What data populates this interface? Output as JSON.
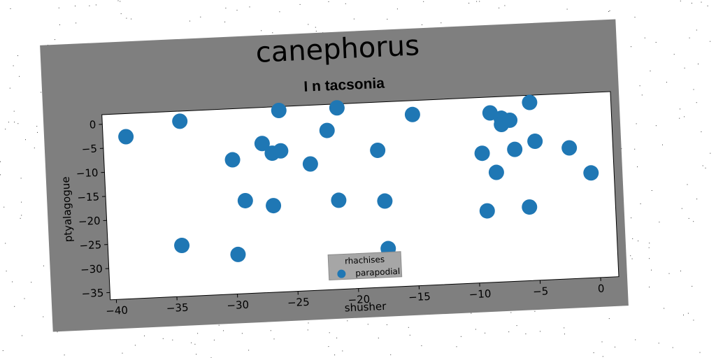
{
  "chart_data": {
    "type": "scatter",
    "suptitle": "canephorus",
    "title": "I n tacsonia",
    "xlabel": "shusher",
    "ylabel": "ptyalagogue",
    "xlim": [
      -40.5,
      1.5
    ],
    "ylim": [
      -36.5,
      2
    ],
    "xticks": [
      -40,
      -35,
      -30,
      -25,
      -20,
      -15,
      -10,
      -5,
      0
    ],
    "yticks": [
      0,
      -5,
      -10,
      -15,
      -20,
      -25,
      -30,
      -35
    ],
    "grid": false,
    "legend": {
      "title": "rhachises",
      "position": "bottom-center"
    },
    "series": [
      {
        "name": "parapodial",
        "color": "#1f77b4",
        "points": [
          [
            -38.6,
            -2.8
          ],
          [
            -34.1,
            -0.1
          ],
          [
            -25.9,
            1.2
          ],
          [
            -21.1,
            1.2
          ],
          [
            -14.9,
            -0.9
          ],
          [
            -8.5,
            -1.3
          ],
          [
            -7.6,
            -2.5
          ],
          [
            -7.6,
            -3.8
          ],
          [
            -6.9,
            -3.0
          ],
          [
            -5.2,
            0.5
          ],
          [
            -27.4,
            -5.5
          ],
          [
            -26.6,
            -7.6
          ],
          [
            -25.9,
            -7.2
          ],
          [
            -22.0,
            -3.4
          ],
          [
            -29.9,
            -8.6
          ],
          [
            -23.5,
            -10.2
          ],
          [
            -17.9,
            -8.0
          ],
          [
            -9.3,
            -9.6
          ],
          [
            -6.6,
            -9.1
          ],
          [
            -4.9,
            -7.6
          ],
          [
            -2.1,
            -9.3
          ],
          [
            -0.4,
            -14.7
          ],
          [
            -8.2,
            -13.7
          ],
          [
            -29.0,
            -17.2
          ],
          [
            -26.7,
            -18.5
          ],
          [
            -21.3,
            -18.0
          ],
          [
            -17.5,
            -18.6
          ],
          [
            -9.1,
            -21.6
          ],
          [
            -5.6,
            -21.2
          ],
          [
            -34.4,
            -25.9
          ],
          [
            -29.8,
            -28.3
          ],
          [
            -17.4,
            -28.5
          ]
        ]
      }
    ]
  }
}
